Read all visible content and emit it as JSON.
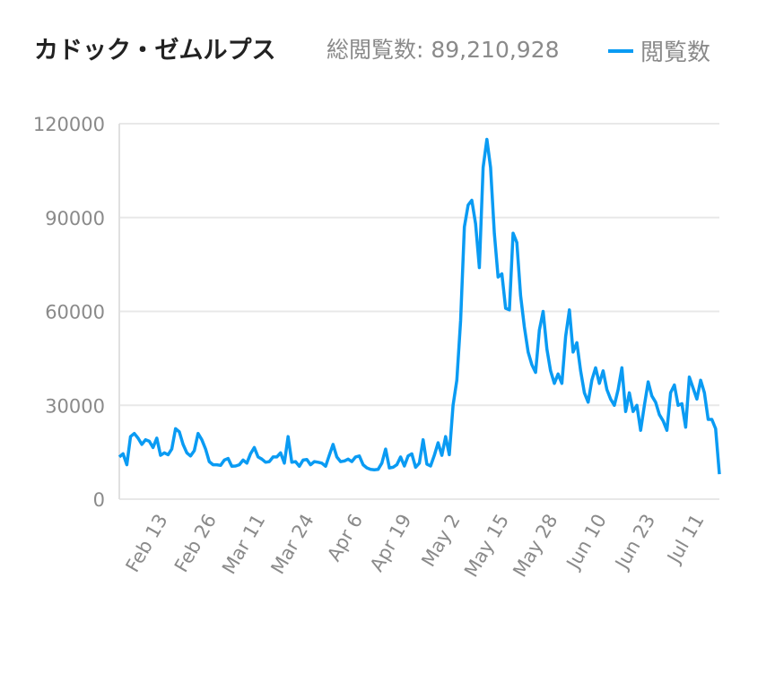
{
  "header": {
    "title": "カドック・ゼムルプス",
    "total_label": "総閲覧数: 89,210,928",
    "legend_label": "閲覧数"
  },
  "colors": {
    "line": "#0a9bf3",
    "grid": "#e8e8e8",
    "axis_text": "#8a8a8a"
  },
  "chart_data": {
    "type": "line",
    "title": "カドック・ゼムルプス",
    "subtitle": "総閲覧数: 89,210,928",
    "xlabel": "",
    "ylabel": "",
    "ylim": [
      0,
      120000
    ],
    "yticks": [
      0,
      30000,
      60000,
      90000,
      120000
    ],
    "grid": true,
    "legend": "top-right",
    "xtick_labels": [
      {
        "index": 13,
        "label": "Feb 13"
      },
      {
        "index": 26,
        "label": "Feb 26"
      },
      {
        "index": 39,
        "label": "Mar 11"
      },
      {
        "index": 52,
        "label": "Mar 24"
      },
      {
        "index": 65,
        "label": "Apr 6"
      },
      {
        "index": 78,
        "label": "Apr 19"
      },
      {
        "index": 91,
        "label": "May 2"
      },
      {
        "index": 104,
        "label": "May 15"
      },
      {
        "index": 117,
        "label": "May 28"
      },
      {
        "index": 130,
        "label": "Jun 10"
      },
      {
        "index": 143,
        "label": "Jun 23"
      },
      {
        "index": 156,
        "label": "Jul 11"
      }
    ],
    "series": [
      {
        "name": "閲覧数",
        "values": [
          13500,
          14500,
          11000,
          20000,
          21000,
          19500,
          17500,
          19000,
          18500,
          16500,
          19500,
          14000,
          14800,
          14200,
          16000,
          22500,
          21500,
          17500,
          14800,
          13800,
          15500,
          21000,
          19000,
          16000,
          12000,
          11000,
          11000,
          10800,
          12500,
          13000,
          10500,
          10600,
          11000,
          12500,
          11500,
          14500,
          16500,
          13500,
          12800,
          11800,
          12000,
          13500,
          13500,
          14800,
          11500,
          20000,
          11800,
          12000,
          10500,
          12500,
          12700,
          11000,
          12000,
          11800,
          11500,
          10500,
          14000,
          17500,
          13500,
          12000,
          12200,
          12800,
          12000,
          13500,
          13800,
          11000,
          10000,
          9500,
          9400,
          9500,
          11500,
          16000,
          10000,
          10200,
          11000,
          13500,
          10600,
          13800,
          14500,
          10200,
          11500,
          19000,
          11200,
          10600,
          14000,
          18000,
          14000,
          20000,
          14200,
          30000,
          38000,
          57000,
          87000,
          94000,
          95500,
          88000,
          74000,
          106000,
          115000,
          106000,
          85000,
          71000,
          72000,
          61000,
          60500,
          85000,
          82000,
          65000,
          55000,
          47000,
          43000,
          40500,
          54000,
          60000,
          48000,
          41000,
          37000,
          40000,
          37000,
          52000,
          60500,
          47000,
          50000,
          41000,
          34000,
          31000,
          38000,
          42000,
          37000,
          41000,
          35000,
          32000,
          30000,
          35000,
          42000,
          28000,
          34000,
          28000,
          30000,
          22000,
          30000,
          37500,
          33000,
          31000,
          27000,
          25000,
          22000,
          34000,
          36500,
          30000,
          30500,
          23000,
          39000,
          35500,
          32000,
          38000,
          34000,
          25500,
          25500,
          22500,
          8000
        ]
      }
    ]
  }
}
